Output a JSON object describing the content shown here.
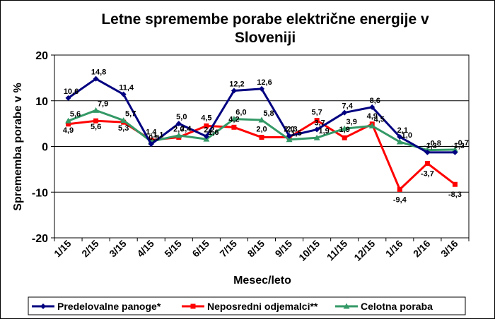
{
  "chart_data": {
    "type": "line",
    "title_lines": [
      "Letne spremembe porabe električne energije v",
      "Sloveniji"
    ],
    "xlabel": "Mesec/leto",
    "ylabel": "Sprememba porabe v %",
    "ylim": [
      -20,
      20
    ],
    "yticks": [
      "20",
      "10",
      "0",
      "-10",
      "-20"
    ],
    "ytick_values": [
      20,
      10,
      0,
      -10,
      -20
    ],
    "grid": "horizontal",
    "legend_position": "bottom",
    "categories": [
      "1/15",
      "2/15",
      "3/15",
      "4/15",
      "5/15",
      "6/15",
      "7/15",
      "8/15",
      "9/15",
      "10/15",
      "11/15",
      "12/15",
      "1/16",
      "2/16",
      "3/16"
    ],
    "series": [
      {
        "name": "Predelovalne panoge*",
        "color": "#000080",
        "marker": "diamond",
        "values": [
          10.6,
          14.8,
          11.4,
          0.5,
          5.0,
          2.2,
          12.2,
          12.6,
          2.3,
          3.7,
          7.4,
          8.6,
          2.1,
          -1.3,
          -1.3
        ],
        "labels": [
          "10,6",
          "14,8",
          "11,4",
          "0,5",
          "5,0",
          "2,2",
          "12,2",
          "12,6",
          "2,3",
          "3,7",
          "7,4",
          "8,6",
          "2,1",
          "-1,3",
          "-1,3"
        ]
      },
      {
        "name": "Neposredni odjemalci**",
        "color": "#ff0000",
        "marker": "square",
        "values": [
          4.9,
          5.6,
          5.3,
          1.4,
          2.0,
          4.5,
          4.2,
          2.0,
          2.0,
          5.7,
          1.9,
          4.9,
          -9.4,
          -3.7,
          -8.3
        ],
        "labels": [
          "4,9",
          "5,6",
          "5,3",
          "1,4",
          "2,0",
          "4,5",
          "4,2",
          "2,0",
          "2,0",
          "5,7",
          "1,9",
          "4,9",
          "-9,4",
          "-3,7",
          "-8,3"
        ]
      },
      {
        "name": "Celotna poraba",
        "color": "#339966",
        "marker": "triangle",
        "values": [
          5.6,
          7.9,
          5.7,
          1.1,
          2.4,
          1.6,
          6.0,
          5.8,
          1.5,
          1.9,
          3.9,
          4.5,
          1.0,
          -0.8,
          -0.7
        ],
        "labels": [
          "5,6",
          "7,9",
          "5,7",
          "1,1",
          "2,4",
          "1,6",
          "6,0",
          "5,8",
          "1,5",
          "1,9",
          "3,9",
          "4,5",
          "1,0",
          "-0,8",
          "-0,7"
        ]
      }
    ]
  }
}
